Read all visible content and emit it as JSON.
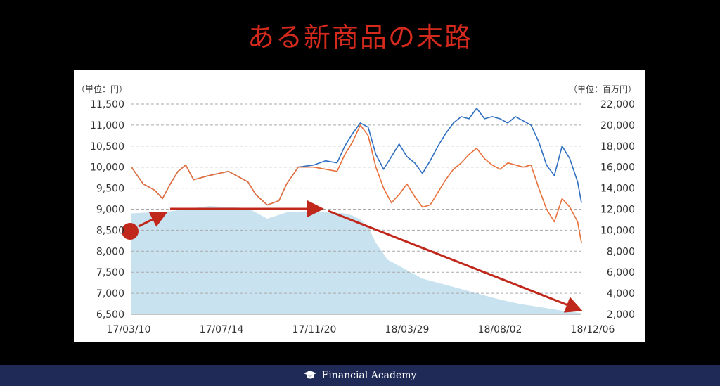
{
  "title": "ある新商品の末路",
  "footer": {
    "brand": "Financial Academy",
    "icon": "graduation-cap-icon"
  },
  "chart_data": {
    "type": "line",
    "left_unit": "（単位：円）",
    "right_unit": "（単位：百万円）",
    "x_ticks": [
      "17/03/10",
      "17/07/14",
      "17/11/20",
      "18/03/29",
      "18/08/02",
      "18/12/06"
    ],
    "y_left": {
      "ticks": [
        "11,500",
        "11,000",
        "10,500",
        "10,000",
        "9,500",
        "9,000",
        "8,500",
        "8,000",
        "7,500",
        "7,000",
        "6,500"
      ],
      "range": [
        6500,
        11500
      ]
    },
    "y_right": {
      "ticks": [
        "22,000",
        "20,000",
        "18,000",
        "16,000",
        "14,000",
        "12,000",
        "10,000",
        "8,000",
        "6,000",
        "4,000",
        "2,000"
      ],
      "range": [
        2000,
        22000
      ]
    },
    "grid": true,
    "colors": {
      "blue": "#2f6fc0",
      "orange": "#e8703a",
      "area": "#c8e2f0",
      "arrow": "#c0281c"
    },
    "series": [
      {
        "color": "blue",
        "axis": "left",
        "points": [
          [
            0,
            10000
          ],
          [
            0.03,
            9600
          ],
          [
            0.06,
            9450
          ],
          [
            0.08,
            9250
          ],
          [
            0.1,
            9600
          ],
          [
            0.12,
            9900
          ],
          [
            0.14,
            10050
          ],
          [
            0.16,
            9700
          ],
          [
            0.2,
            9800
          ],
          [
            0.25,
            9900
          ],
          [
            0.3,
            9650
          ],
          [
            0.32,
            9350
          ],
          [
            0.35,
            9100
          ],
          [
            0.38,
            9200
          ],
          [
            0.4,
            9600
          ],
          [
            0.43,
            10000
          ],
          [
            0.47,
            10050
          ],
          [
            0.5,
            10150
          ],
          [
            0.53,
            10100
          ],
          [
            0.55,
            10500
          ],
          [
            0.57,
            10800
          ],
          [
            0.59,
            11050
          ],
          [
            0.61,
            10950
          ],
          [
            0.63,
            10300
          ],
          [
            0.65,
            9950
          ],
          [
            0.67,
            10250
          ],
          [
            0.69,
            10550
          ],
          [
            0.71,
            10250
          ],
          [
            0.73,
            10100
          ],
          [
            0.75,
            9850
          ],
          [
            0.77,
            10150
          ],
          [
            0.79,
            10500
          ],
          [
            0.81,
            10800
          ],
          [
            0.83,
            11050
          ],
          [
            0.85,
            11200
          ],
          [
            0.87,
            11150
          ],
          [
            0.89,
            11400
          ],
          [
            0.91,
            11150
          ],
          [
            0.93,
            11200
          ],
          [
            0.95,
            11150
          ],
          [
            0.97,
            11050
          ],
          [
            0.99,
            11200
          ],
          [
            1.01,
            11100
          ],
          [
            1.03,
            11000
          ],
          [
            1.05,
            10600
          ],
          [
            1.07,
            10050
          ],
          [
            1.09,
            9800
          ],
          [
            1.11,
            10500
          ],
          [
            1.13,
            10200
          ],
          [
            1.15,
            9650
          ],
          [
            1.16,
            9150
          ]
        ]
      },
      {
        "color": "orange",
        "axis": "left",
        "points": [
          [
            0,
            10000
          ],
          [
            0.03,
            9600
          ],
          [
            0.06,
            9450
          ],
          [
            0.08,
            9250
          ],
          [
            0.1,
            9600
          ],
          [
            0.12,
            9900
          ],
          [
            0.14,
            10050
          ],
          [
            0.16,
            9700
          ],
          [
            0.2,
            9800
          ],
          [
            0.25,
            9900
          ],
          [
            0.3,
            9650
          ],
          [
            0.32,
            9350
          ],
          [
            0.35,
            9100
          ],
          [
            0.38,
            9200
          ],
          [
            0.4,
            9600
          ],
          [
            0.43,
            10000
          ],
          [
            0.47,
            10000
          ],
          [
            0.5,
            9950
          ],
          [
            0.53,
            9900
          ],
          [
            0.55,
            10300
          ],
          [
            0.57,
            10600
          ],
          [
            0.59,
            11000
          ],
          [
            0.61,
            10750
          ],
          [
            0.63,
            10000
          ],
          [
            0.65,
            9500
          ],
          [
            0.67,
            9150
          ],
          [
            0.69,
            9350
          ],
          [
            0.71,
            9600
          ],
          [
            0.73,
            9300
          ],
          [
            0.75,
            9050
          ],
          [
            0.77,
            9100
          ],
          [
            0.79,
            9400
          ],
          [
            0.81,
            9700
          ],
          [
            0.83,
            9950
          ],
          [
            0.85,
            10100
          ],
          [
            0.87,
            10300
          ],
          [
            0.89,
            10450
          ],
          [
            0.91,
            10200
          ],
          [
            0.93,
            10050
          ],
          [
            0.95,
            9950
          ],
          [
            0.97,
            10100
          ],
          [
            0.99,
            10050
          ],
          [
            1.01,
            10000
          ],
          [
            1.03,
            10050
          ],
          [
            1.05,
            9500
          ],
          [
            1.07,
            9000
          ],
          [
            1.09,
            8700
          ],
          [
            1.11,
            9250
          ],
          [
            1.13,
            9050
          ],
          [
            1.15,
            8700
          ],
          [
            1.16,
            8200
          ]
        ]
      }
    ],
    "area": {
      "axis": "right",
      "points": [
        [
          0,
          11600
        ],
        [
          0.05,
          11700
        ],
        [
          0.1,
          11800
        ],
        [
          0.2,
          12300
        ],
        [
          0.3,
          12100
        ],
        [
          0.35,
          11100
        ],
        [
          0.4,
          11700
        ],
        [
          0.45,
          11800
        ],
        [
          0.5,
          11700
        ],
        [
          0.55,
          11600
        ],
        [
          0.57,
          11400
        ],
        [
          0.59,
          11000
        ],
        [
          0.61,
          10300
        ],
        [
          0.63,
          8800
        ],
        [
          0.66,
          7200
        ],
        [
          0.7,
          6400
        ],
        [
          0.75,
          5400
        ],
        [
          0.8,
          4900
        ],
        [
          0.85,
          4400
        ],
        [
          0.9,
          3900
        ],
        [
          0.95,
          3400
        ],
        [
          1.0,
          3000
        ],
        [
          1.05,
          2700
        ],
        [
          1.1,
          2400
        ],
        [
          1.16,
          2100
        ]
      ]
    }
  }
}
